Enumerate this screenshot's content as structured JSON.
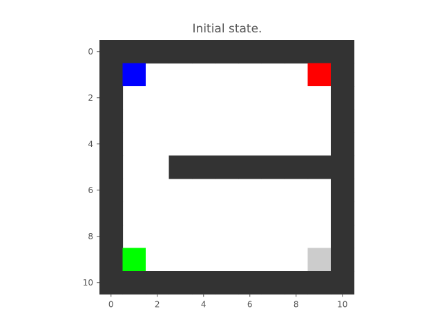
{
  "title": "Initial state.",
  "colors": {
    "wall": "#333333",
    "floor": "#ffffff",
    "tick": "#555555"
  },
  "grid": {
    "rows": 11,
    "cols": 11,
    "walls": [
      [
        1,
        1,
        1,
        1,
        1,
        1,
        1,
        1,
        1,
        1,
        1
      ],
      [
        1,
        0,
        0,
        0,
        0,
        0,
        0,
        0,
        0,
        0,
        1
      ],
      [
        1,
        0,
        0,
        0,
        0,
        0,
        0,
        0,
        0,
        0,
        1
      ],
      [
        1,
        0,
        0,
        0,
        0,
        0,
        0,
        0,
        0,
        0,
        1
      ],
      [
        1,
        0,
        0,
        0,
        0,
        0,
        0,
        0,
        0,
        0,
        1
      ],
      [
        1,
        0,
        0,
        1,
        1,
        1,
        1,
        1,
        1,
        1,
        1
      ],
      [
        1,
        0,
        0,
        0,
        0,
        0,
        0,
        0,
        0,
        0,
        1
      ],
      [
        1,
        0,
        0,
        0,
        0,
        0,
        0,
        0,
        0,
        0,
        1
      ],
      [
        1,
        0,
        0,
        0,
        0,
        0,
        0,
        0,
        0,
        0,
        1
      ],
      [
        1,
        0,
        0,
        0,
        0,
        0,
        0,
        0,
        0,
        0,
        1
      ],
      [
        1,
        1,
        1,
        1,
        1,
        1,
        1,
        1,
        1,
        1,
        1
      ]
    ],
    "special_cells": [
      {
        "name": "blue-cell",
        "row": 1,
        "col": 1,
        "color": "#0000ff"
      },
      {
        "name": "red-cell",
        "row": 1,
        "col": 9,
        "color": "#ff0000"
      },
      {
        "name": "green-cell",
        "row": 9,
        "col": 1,
        "color": "#00ff00"
      },
      {
        "name": "gray-cell",
        "row": 9,
        "col": 9,
        "color": "#cccccc"
      }
    ]
  },
  "axes": {
    "x_ticks": [
      "0",
      "2",
      "4",
      "6",
      "8",
      "10"
    ],
    "y_ticks": [
      "0",
      "2",
      "4",
      "6",
      "8",
      "10"
    ]
  }
}
